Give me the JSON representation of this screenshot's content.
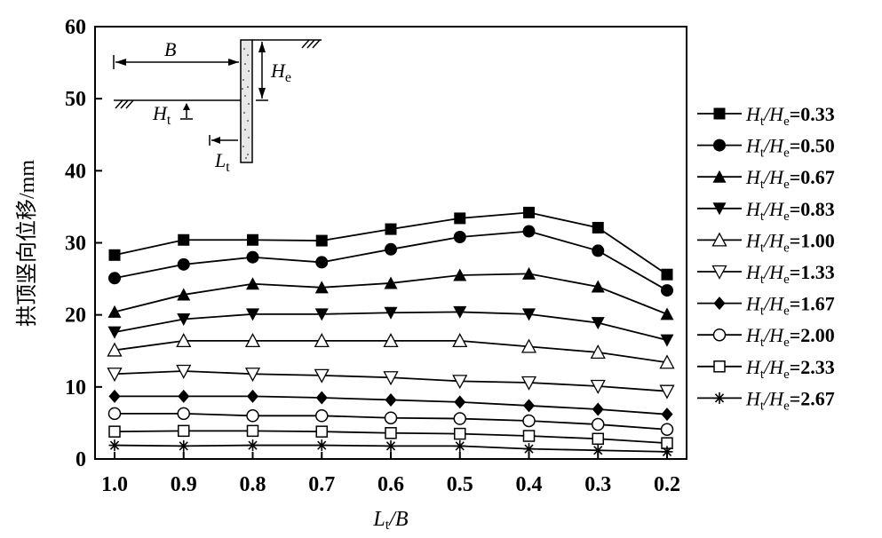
{
  "chart_data": {
    "type": "line",
    "title": "",
    "xlabel": "L",
    "xlabel_sub": "t",
    "xlabel_suffix": "/B",
    "ylabel": "拱顶竖向位移/mm",
    "x": [
      1.0,
      0.9,
      0.8,
      0.7,
      0.6,
      0.5,
      0.4,
      0.3,
      0.2
    ],
    "x_tick_labels": [
      "1.0",
      "0.9",
      "0.8",
      "0.7",
      "0.6",
      "0.5",
      "0.4",
      "0.3",
      "0.2"
    ],
    "xlim": [
      1.0,
      0.2
    ],
    "ylim": [
      0,
      60
    ],
    "y_ticks": [
      0,
      10,
      20,
      30,
      40,
      50,
      60
    ],
    "y_tick_labels": [
      "0",
      "10",
      "20",
      "30",
      "40",
      "50",
      "60"
    ],
    "grid": false,
    "legend_position": "right",
    "series": [
      {
        "name": "Ht/He=0.33",
        "ratio": "=0.33",
        "marker": "square-filled",
        "values": [
          28.3,
          30.4,
          30.4,
          30.3,
          31.9,
          33.4,
          34.2,
          32.1,
          25.6
        ]
      },
      {
        "name": "Ht/He=0.50",
        "ratio": "=0.50",
        "marker": "circle-filled",
        "values": [
          25.1,
          27.0,
          28.0,
          27.3,
          29.1,
          30.8,
          31.6,
          28.9,
          23.4
        ]
      },
      {
        "name": "Ht/He=0.67",
        "ratio": "=0.67",
        "marker": "triangle-up-filled",
        "values": [
          20.4,
          22.8,
          24.3,
          23.8,
          24.4,
          25.5,
          25.7,
          23.9,
          20.1
        ]
      },
      {
        "name": "Ht/He=0.83",
        "ratio": "=0.83",
        "marker": "triangle-down-filled",
        "values": [
          17.6,
          19.4,
          20.1,
          20.1,
          20.3,
          20.4,
          20.1,
          18.9,
          16.5
        ]
      },
      {
        "name": "Ht/He=1.00",
        "ratio": "=1.00",
        "marker": "triangle-up-open",
        "values": [
          15.1,
          16.4,
          16.4,
          16.4,
          16.4,
          16.4,
          15.6,
          14.8,
          13.4
        ]
      },
      {
        "name": "Ht/He=1.33",
        "ratio": "=1.33",
        "marker": "triangle-down-open",
        "values": [
          11.8,
          12.2,
          11.8,
          11.6,
          11.3,
          10.8,
          10.6,
          10.1,
          9.4
        ]
      },
      {
        "name": "Ht/He=1.67",
        "ratio": "=1.67",
        "marker": "diamond-filled",
        "values": [
          8.7,
          8.7,
          8.7,
          8.5,
          8.2,
          7.9,
          7.4,
          6.9,
          6.2
        ]
      },
      {
        "name": "Ht/He=2.00",
        "ratio": "=2.00",
        "marker": "circle-open",
        "values": [
          6.3,
          6.3,
          6.0,
          6.0,
          5.7,
          5.6,
          5.3,
          4.8,
          4.1
        ]
      },
      {
        "name": "Ht/He=2.33",
        "ratio": "=2.33",
        "marker": "square-open",
        "values": [
          3.8,
          3.9,
          3.9,
          3.8,
          3.6,
          3.5,
          3.2,
          2.8,
          2.2
        ]
      },
      {
        "name": "Ht/He=2.67",
        "ratio": "=2.67",
        "marker": "asterisk",
        "values": [
          1.9,
          1.8,
          1.9,
          1.9,
          1.8,
          1.8,
          1.4,
          1.2,
          1.0
        ]
      }
    ],
    "inset_labels": {
      "B": "B",
      "He_main": "H",
      "He_sub": "e",
      "Ht_main": "H",
      "Ht_sub": "t",
      "Lt_main": "L",
      "Lt_sub": "t"
    },
    "legend_label_parts": {
      "H": "H",
      "t": "t",
      "slash": "/",
      "e": "e"
    }
  }
}
